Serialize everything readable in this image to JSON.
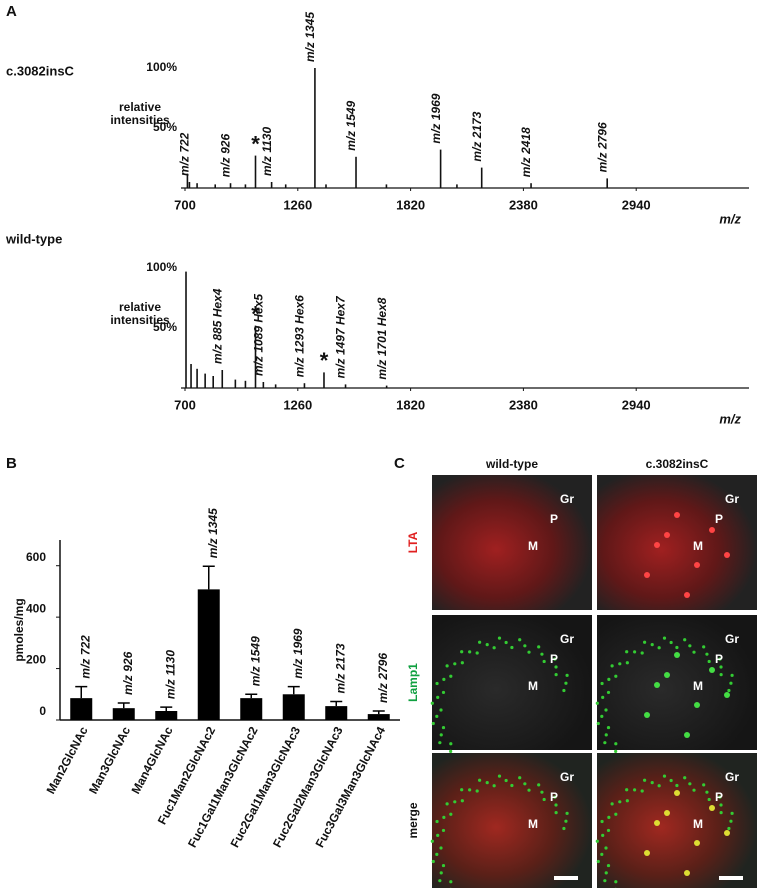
{
  "panels": [
    "A",
    "B",
    "C"
  ],
  "chart_data": [
    {
      "type": "spectrum",
      "title": "c.3082insC",
      "y_label": [
        "relative",
        "intensities"
      ],
      "x_label": "m/z",
      "x": [
        712,
        722,
        760,
        850,
        926,
        1000,
        1050,
        1130,
        1200,
        1345,
        1400,
        1549,
        1700,
        1969,
        2050,
        2173,
        2418,
        2796
      ],
      "values": [
        12,
        5,
        4,
        3,
        4,
        3,
        27,
        5,
        3,
        100,
        3,
        26,
        3,
        32,
        3,
        17,
        4,
        8
      ],
      "peak_labels": [
        null,
        "m/z 722",
        null,
        null,
        "m/z 926",
        null,
        "*",
        "m/z 1130",
        null,
        "m/z 1345",
        null,
        "m/z 1549",
        null,
        "m/z 1969",
        null,
        "m/z 2173",
        "m/z 2418",
        "m/z 2796"
      ],
      "color": "#111111",
      "xlim": [
        700,
        3500
      ],
      "xticks": [
        700,
        1260,
        1820,
        2380,
        2940
      ],
      "ylim": [
        0,
        100
      ],
      "yticks": [
        {
          "value": 50,
          "label": "50%"
        },
        {
          "value": 100,
          "label": "100%"
        }
      ]
    },
    {
      "type": "spectrum",
      "title": "wild-type",
      "y_label": [
        "relative",
        "intensities"
      ],
      "x_label": "m/z",
      "x": [
        705,
        730,
        760,
        800,
        840,
        885,
        950,
        1000,
        1050,
        1089,
        1150,
        1293,
        1390,
        1497,
        1701
      ],
      "values": [
        97,
        20,
        16,
        12,
        10,
        15,
        7,
        6,
        52,
        5,
        3,
        4,
        13,
        3,
        2
      ],
      "peak_labels": [
        null,
        null,
        null,
        null,
        null,
        "m/z 885 Hex4",
        null,
        null,
        "*",
        "m/z 1089 Hex5",
        null,
        "m/z 1293 Hex6",
        "*",
        "m/z 1497 Hex7",
        "m/z 1701 Hex8"
      ],
      "color": "#111111",
      "xlim": [
        700,
        3500
      ],
      "xticks": [
        700,
        1260,
        1820,
        2380,
        2940
      ],
      "ylim": [
        0,
        100
      ],
      "yticks": [
        {
          "value": 50,
          "label": "50%"
        },
        {
          "value": 100,
          "label": "100%"
        }
      ]
    },
    {
      "type": "bar",
      "y_label": "pmoles/mg",
      "categories": [
        "Man2GlcNAc",
        "Man3GlcNAc",
        "Man4GlcNAc",
        "Fuc1Man2GlcNAc2",
        "Fuc1Gal1Man3GlcNAc2",
        "Fuc2Gal1Man3GlcNAc3",
        "Fuc2Gal2Man3GlcNAc3",
        "Fuc3Gal3Man3GlcNAc4"
      ],
      "values": [
        85,
        46,
        35,
        508,
        85,
        100,
        54,
        23
      ],
      "errors": [
        45,
        20,
        15,
        90,
        15,
        30,
        18,
        12
      ],
      "bar_labels": [
        "m/z 722",
        "m/z 926",
        "m/z 1130",
        "m/z 1345",
        "m/z 1549",
        "m/z 1969",
        "m/z 2173",
        "m/z 2796"
      ],
      "color": "#000000",
      "ylim": [
        0,
        700
      ],
      "yticks": [
        0,
        200,
        400,
        600
      ]
    }
  ],
  "microscopy": {
    "columns": [
      "wild-type",
      "c.3082insC"
    ],
    "rows": [
      {
        "label": "LTA",
        "color": "#e02020"
      },
      {
        "label": "Lamp1",
        "color": "#10a040"
      },
      {
        "label": "merge",
        "color": "#111111"
      }
    ],
    "regions": [
      "Gr",
      "P",
      "M"
    ]
  }
}
